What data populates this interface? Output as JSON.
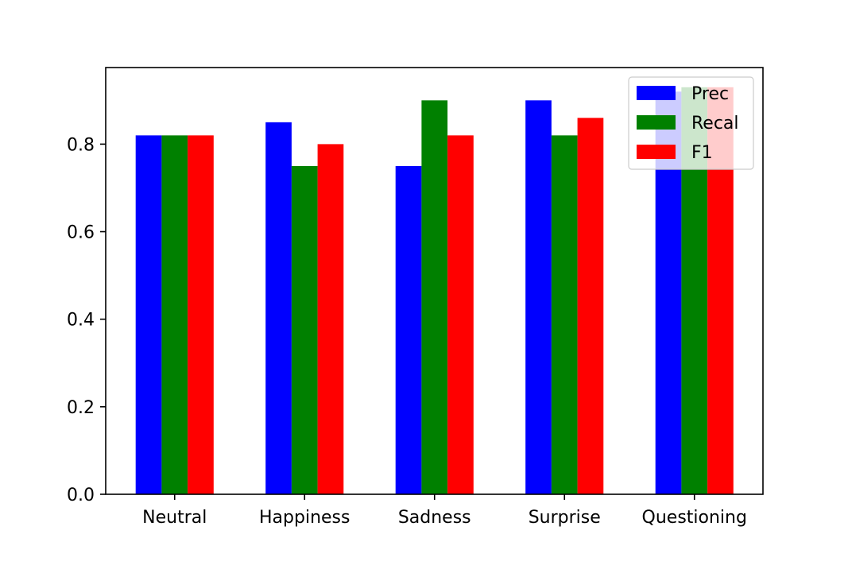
{
  "chart_data": {
    "type": "bar",
    "title": "",
    "xlabel": "",
    "ylabel": "",
    "categories": [
      "Neutral",
      "Happiness",
      "Sadness",
      "Surprise",
      "Questioning"
    ],
    "series": [
      {
        "name": "Prec",
        "color": "#0000ff",
        "values": [
          0.82,
          0.85,
          0.75,
          0.9,
          0.92
        ]
      },
      {
        "name": "Recal",
        "color": "#008000",
        "values": [
          0.82,
          0.75,
          0.9,
          0.82,
          0.93
        ]
      },
      {
        "name": "F1",
        "color": "#ff0000",
        "values": [
          0.82,
          0.8,
          0.82,
          0.86,
          0.93
        ]
      }
    ],
    "ylim": [
      0,
      0.975
    ],
    "yticks": [
      0.0,
      0.2,
      0.4,
      0.6,
      0.8
    ],
    "ytick_labels": [
      "0.0",
      "0.2",
      "0.4",
      "0.6",
      "0.8"
    ],
    "grid": false,
    "legend_position": "top-right"
  }
}
